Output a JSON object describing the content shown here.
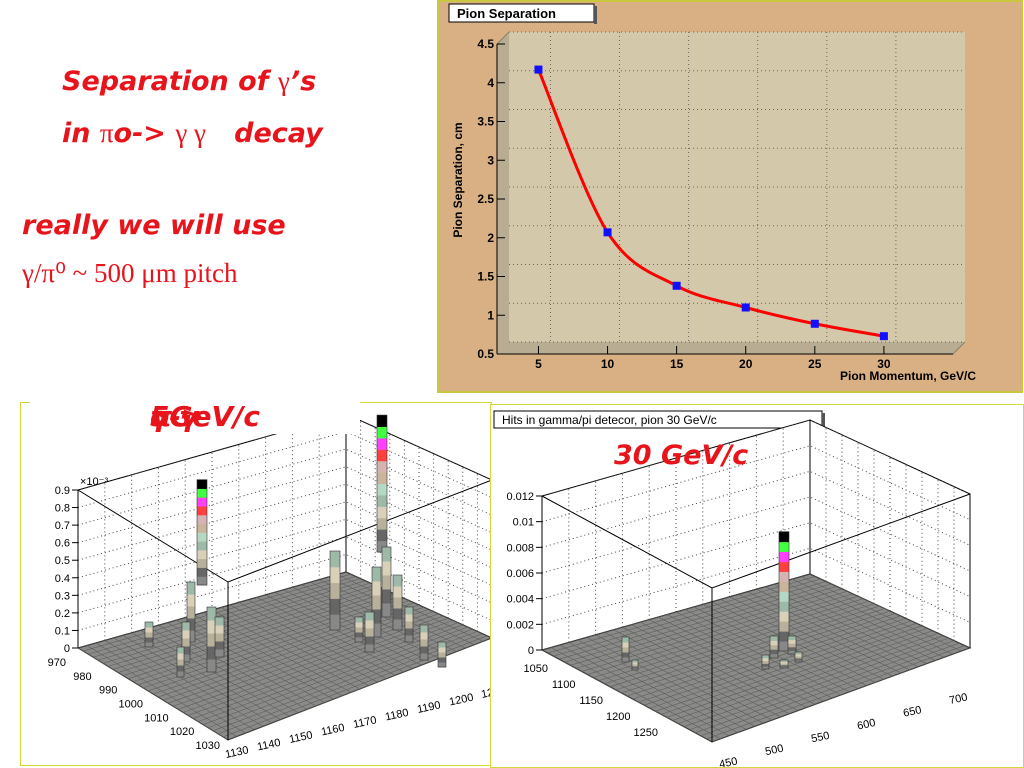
{
  "slide": {
    "title_line1_pre": "Separation of ",
    "title_line1_greek": "γ",
    "title_line1_post": "’s",
    "title_line2_pre": "in ",
    "title_line2_greek": "π",
    "title_line2_mid": "o-> ",
    "title_line2_greek2": "γ γ",
    "title_line2_post": "   decay",
    "note_line1": "really we will use",
    "note_line2": "γ/π⁰ ~ 500 μm pitch",
    "label_5gev_pre": "5GeV/c ",
    "label_5gev_greek": "π",
    "label_5gev_mid": "o-> ",
    "label_5gev_greek2": "γ γ",
    "label_30gev": "30 GeV/c"
  },
  "chart_data": [
    {
      "type": "line",
      "title": "Pion Separation",
      "xlabel": "Pion Momentum, GeV/C",
      "ylabel": "Pion Separation, cm",
      "xlim": [
        2,
        35
      ],
      "ylim": [
        0.5,
        4.5
      ],
      "x_ticks": [
        "5",
        "10",
        "15",
        "20",
        "25",
        "30"
      ],
      "y_ticks": [
        "0.5",
        "1",
        "1.5",
        "2",
        "2.5",
        "3",
        "3.5",
        "4",
        "4.5"
      ],
      "grid": true,
      "colors": {
        "frame": "#d8b084",
        "plot": "#cfc3a5",
        "curve": "#ff0000",
        "marker": "#1010ff"
      },
      "series": [
        {
          "x": [
            5,
            10,
            15,
            20,
            25,
            30
          ],
          "values": [
            4.17,
            2.07,
            1.38,
            1.1,
            0.89,
            0.73
          ]
        }
      ]
    },
    {
      "type": "lego3d",
      "title": "",
      "multiplier": "×10⁻³",
      "z_ticks": [
        "0",
        "0.1",
        "0.2",
        "0.3",
        "0.4",
        "0.5",
        "0.6",
        "0.7",
        "0.8",
        "0.9"
      ],
      "x_ticks": [
        "1130",
        "1140",
        "1150",
        "1160",
        "1170",
        "1180",
        "1190",
        "1200",
        "12"
      ],
      "y_ticks": [
        "970",
        "980",
        "990",
        "1000",
        "1010",
        "1020",
        "1030"
      ],
      "grid": true,
      "peaks": [
        {
          "x": 1145,
          "y": 1015,
          "value": 0.6
        },
        {
          "x": 1180,
          "y": 1020,
          "value": 0.78
        },
        {
          "x": 1168,
          "y": 1018,
          "value": 0.45
        }
      ]
    },
    {
      "type": "lego3d",
      "title": "Hits in gamma/pi detecor, pion 30 GeV/c",
      "z_ticks": [
        "0",
        "0.002",
        "0.004",
        "0.006",
        "0.008",
        "0.01",
        "0.012"
      ],
      "x_ticks": [
        "450",
        "500",
        "550",
        "600",
        "650",
        "700"
      ],
      "y_ticks": [
        "1050",
        "1100",
        "1150",
        "1200",
        "1250"
      ],
      "grid": true,
      "peaks": [
        {
          "x": 575,
          "y": 1150,
          "value": 0.0093
        }
      ]
    }
  ]
}
